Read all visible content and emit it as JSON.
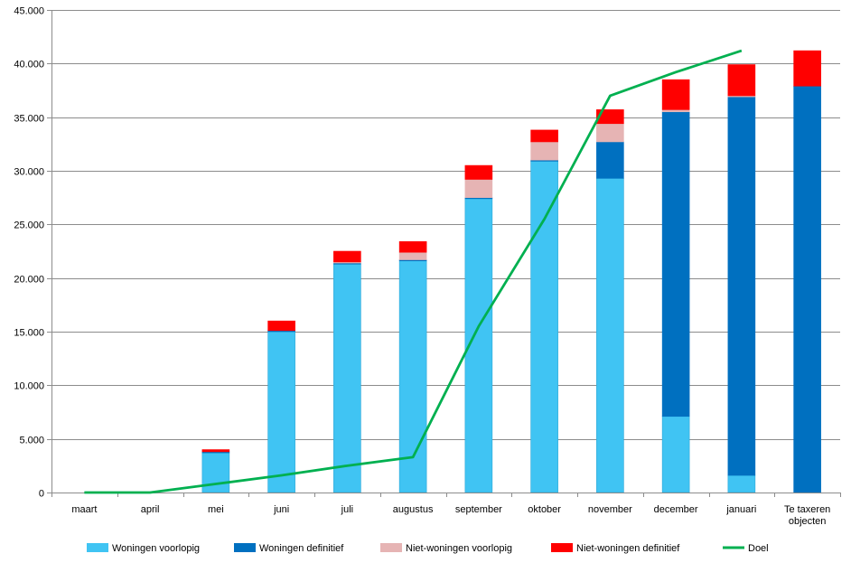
{
  "chart_data": {
    "type": "bar",
    "stacked": true,
    "categories": [
      "maart",
      "april",
      "mei",
      "juni",
      "juli",
      "augustus",
      "september",
      "oktober",
      "november",
      "december",
      "januari",
      [
        "Te taxeren",
        "objecten"
      ]
    ],
    "ylim": [
      0,
      45000
    ],
    "yticks": [
      0,
      5000,
      10000,
      15000,
      20000,
      25000,
      30000,
      35000,
      40000,
      45000
    ],
    "ytick_labels": [
      "0",
      "5.000",
      "10.000",
      "15.000",
      "20.000",
      "25.000",
      "30.000",
      "35.000",
      "40.000",
      "45.000"
    ],
    "grid": true,
    "legend_position": "bottom",
    "series": [
      {
        "name": "Woningen voorlopig",
        "color": "#40C4F3",
        "values": [
          0,
          0,
          3700,
          15000,
          21300,
          21600,
          27400,
          30900,
          29300,
          7100,
          1600,
          0
        ]
      },
      {
        "name": "Woningen definitief",
        "color": "#0070C0",
        "values": [
          0,
          0,
          100,
          100,
          100,
          100,
          100,
          100,
          3400,
          28400,
          35300,
          37900
        ]
      },
      {
        "name": "Niet-woningen voorlopig",
        "color": "#E6B4B4",
        "values": [
          0,
          0,
          0,
          0,
          100,
          700,
          1700,
          1700,
          1700,
          200,
          100,
          0
        ]
      },
      {
        "name": "Niet-woningen definitief",
        "color": "#FF0000",
        "values": [
          0,
          0,
          200,
          900,
          1000,
          1000,
          1300,
          1100,
          1300,
          2800,
          2900,
          3300
        ]
      }
    ],
    "line": {
      "name": "Doel",
      "color": "#00B050",
      "values": [
        0,
        0,
        800,
        1600,
        2500,
        3300,
        15500,
        25500,
        37000,
        39200,
        41200,
        null
      ]
    }
  }
}
